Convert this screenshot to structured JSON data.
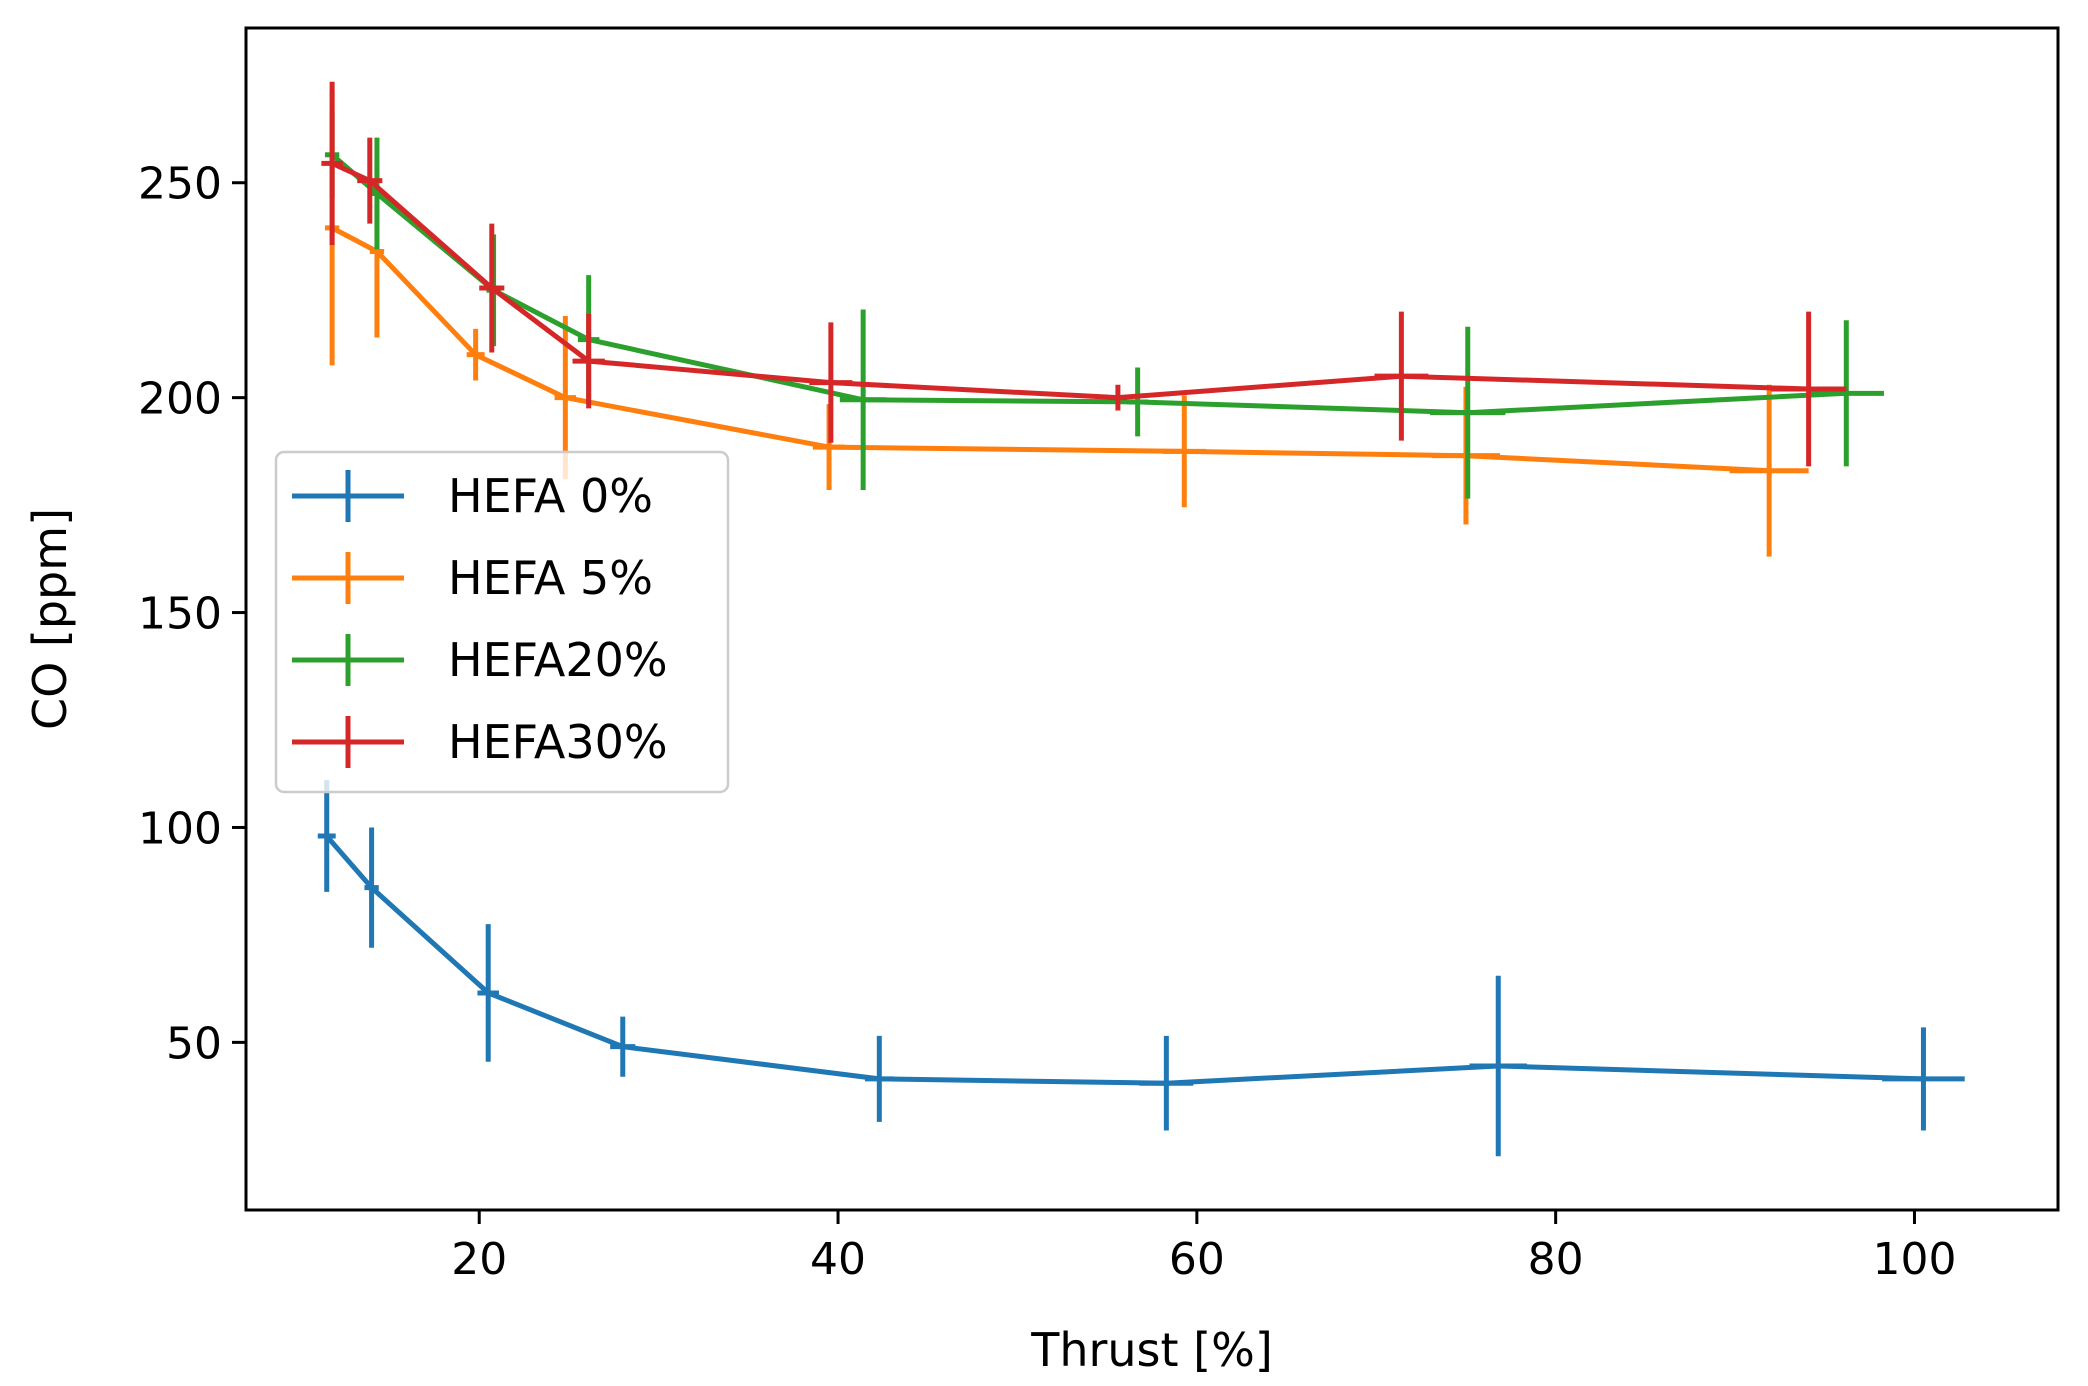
{
  "chart_data": {
    "type": "line",
    "title": "",
    "xlabel": "Thrust [%]",
    "ylabel": "CO [ppm]",
    "xlim": [
      7,
      108
    ],
    "ylim": [
      11,
      286
    ],
    "xticks": [
      20,
      40,
      60,
      80,
      100
    ],
    "yticks": [
      50,
      100,
      150,
      200,
      250
    ],
    "grid": false,
    "legend_position": "center-left",
    "error_bars": true,
    "series": [
      {
        "name": "HEFA 0%",
        "color": "#1f77b4",
        "x": [
          11.5,
          14,
          20.5,
          28,
          42.3,
          58.3,
          76.8,
          100.5
        ],
        "y": [
          98,
          86,
          61.5,
          49,
          41.5,
          40.5,
          44.5,
          41.5
        ],
        "yerr": [
          13,
          14,
          16,
          7,
          10,
          11,
          21,
          12
        ],
        "xerr": [
          0.5,
          0.4,
          0.6,
          0.7,
          0.8,
          1.5,
          1.6,
          2.3
        ]
      },
      {
        "name": "HEFA 5%",
        "color": "#ff7f0e",
        "x": [
          11.8,
          14.3,
          19.8,
          24.8,
          39.5,
          59.3,
          75,
          91.9
        ],
        "y": [
          239.5,
          234,
          210,
          200,
          188.5,
          187.5,
          186.5,
          183
        ],
        "yerr": [
          32,
          20,
          6,
          19,
          10,
          13,
          16,
          20
        ],
        "xerr": [
          0.4,
          0.4,
          0.5,
          0.6,
          0.9,
          1.2,
          1.9,
          2.2
        ]
      },
      {
        "name": "HEFA20%",
        "color": "#2ca02c",
        "x": [
          11.8,
          14.3,
          20.8,
          26.1,
          41.4,
          56.7,
          75.1,
          96.2
        ],
        "y": [
          256.5,
          247.5,
          225,
          213.5,
          199.5,
          199,
          196.5,
          201
        ],
        "yerr": [
          10,
          13,
          13,
          15,
          21,
          8,
          20,
          17
        ],
        "xerr": [
          0.4,
          0.4,
          0.4,
          0.6,
          1.3,
          0.6,
          2.1,
          2.1
        ]
      },
      {
        "name": "HEFA30%",
        "color": "#d62728",
        "x": [
          11.8,
          13.9,
          20.7,
          26.1,
          39.6,
          55.6,
          71.4,
          94.1
        ],
        "y": [
          254.5,
          250.5,
          225.5,
          208.5,
          203.5,
          200,
          205,
          202
        ],
        "yerr": [
          19,
          10,
          15,
          11,
          14,
          3,
          15,
          18
        ],
        "xerr": [
          0.6,
          0.7,
          0.7,
          0.9,
          1.2,
          0.5,
          1.5,
          2.1
        ]
      }
    ]
  }
}
